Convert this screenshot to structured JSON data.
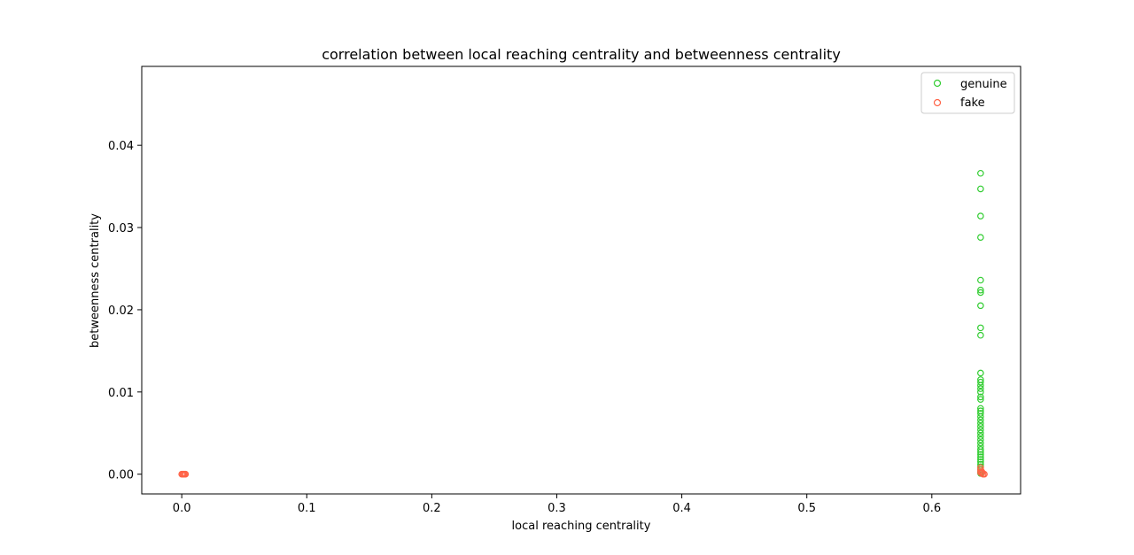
{
  "chart_data": {
    "type": "scatter",
    "title": "correlation between local reaching centrality and betweenness centrality",
    "xlabel": "local reaching centrality",
    "ylabel": "betweenness centrality",
    "xlim": [
      -0.032,
      0.671
    ],
    "ylim": [
      -0.0024,
      0.0496
    ],
    "xticks": [
      0.0,
      0.1,
      0.2,
      0.3,
      0.4,
      0.5,
      0.6
    ],
    "xtick_labels": [
      "0.0",
      "0.1",
      "0.2",
      "0.3",
      "0.4",
      "0.5",
      "0.6"
    ],
    "yticks": [
      0.0,
      0.01,
      0.02,
      0.03,
      0.04
    ],
    "ytick_labels": [
      "0.00",
      "0.01",
      "0.02",
      "0.03",
      "0.04"
    ],
    "grid": false,
    "legend_position": "top-right",
    "series": [
      {
        "name": "genuine",
        "color": "#32cd32",
        "marker": "open-circle",
        "points": [
          [
            0.639,
            0.0366
          ],
          [
            0.639,
            0.0347
          ],
          [
            0.639,
            0.0314
          ],
          [
            0.639,
            0.0288
          ],
          [
            0.639,
            0.0236
          ],
          [
            0.639,
            0.0224
          ],
          [
            0.639,
            0.0221
          ],
          [
            0.639,
            0.0205
          ],
          [
            0.639,
            0.0178
          ],
          [
            0.639,
            0.0169
          ],
          [
            0.639,
            0.0123
          ],
          [
            0.639,
            0.0115
          ],
          [
            0.639,
            0.0112
          ],
          [
            0.639,
            0.0108
          ],
          [
            0.639,
            0.0104
          ],
          [
            0.639,
            0.01
          ],
          [
            0.639,
            0.0094
          ],
          [
            0.639,
            0.0091
          ],
          [
            0.639,
            0.008
          ],
          [
            0.639,
            0.0077
          ],
          [
            0.639,
            0.0074
          ],
          [
            0.639,
            0.007
          ],
          [
            0.639,
            0.0066
          ],
          [
            0.639,
            0.0062
          ],
          [
            0.639,
            0.0058
          ],
          [
            0.639,
            0.0054
          ],
          [
            0.639,
            0.005
          ],
          [
            0.639,
            0.0046
          ],
          [
            0.639,
            0.0042
          ],
          [
            0.639,
            0.0038
          ],
          [
            0.639,
            0.0034
          ],
          [
            0.639,
            0.003
          ],
          [
            0.639,
            0.0027
          ],
          [
            0.639,
            0.0024
          ],
          [
            0.639,
            0.0021
          ],
          [
            0.639,
            0.0018
          ],
          [
            0.639,
            0.0015
          ],
          [
            0.639,
            0.0012
          ],
          [
            0.639,
            0.0009
          ],
          [
            0.639,
            0.0006
          ],
          [
            0.639,
            0.0003
          ],
          [
            0.639,
            0.0001
          ]
        ]
      },
      {
        "name": "fake",
        "color": "#ff6347",
        "marker": "open-circle",
        "points": [
          [
            0.0,
            0.0
          ],
          [
            0.0008,
            0.0
          ],
          [
            0.0015,
            0.0
          ],
          [
            0.0022,
            0.0
          ],
          [
            0.003,
            0.0
          ],
          [
            0.639,
            0.0008
          ],
          [
            0.639,
            0.0005
          ],
          [
            0.64,
            0.0003
          ],
          [
            0.64,
            0.0001
          ],
          [
            0.641,
            0.0
          ],
          [
            0.642,
            0.0
          ],
          [
            0.639,
            0.0002
          ]
        ]
      }
    ]
  }
}
